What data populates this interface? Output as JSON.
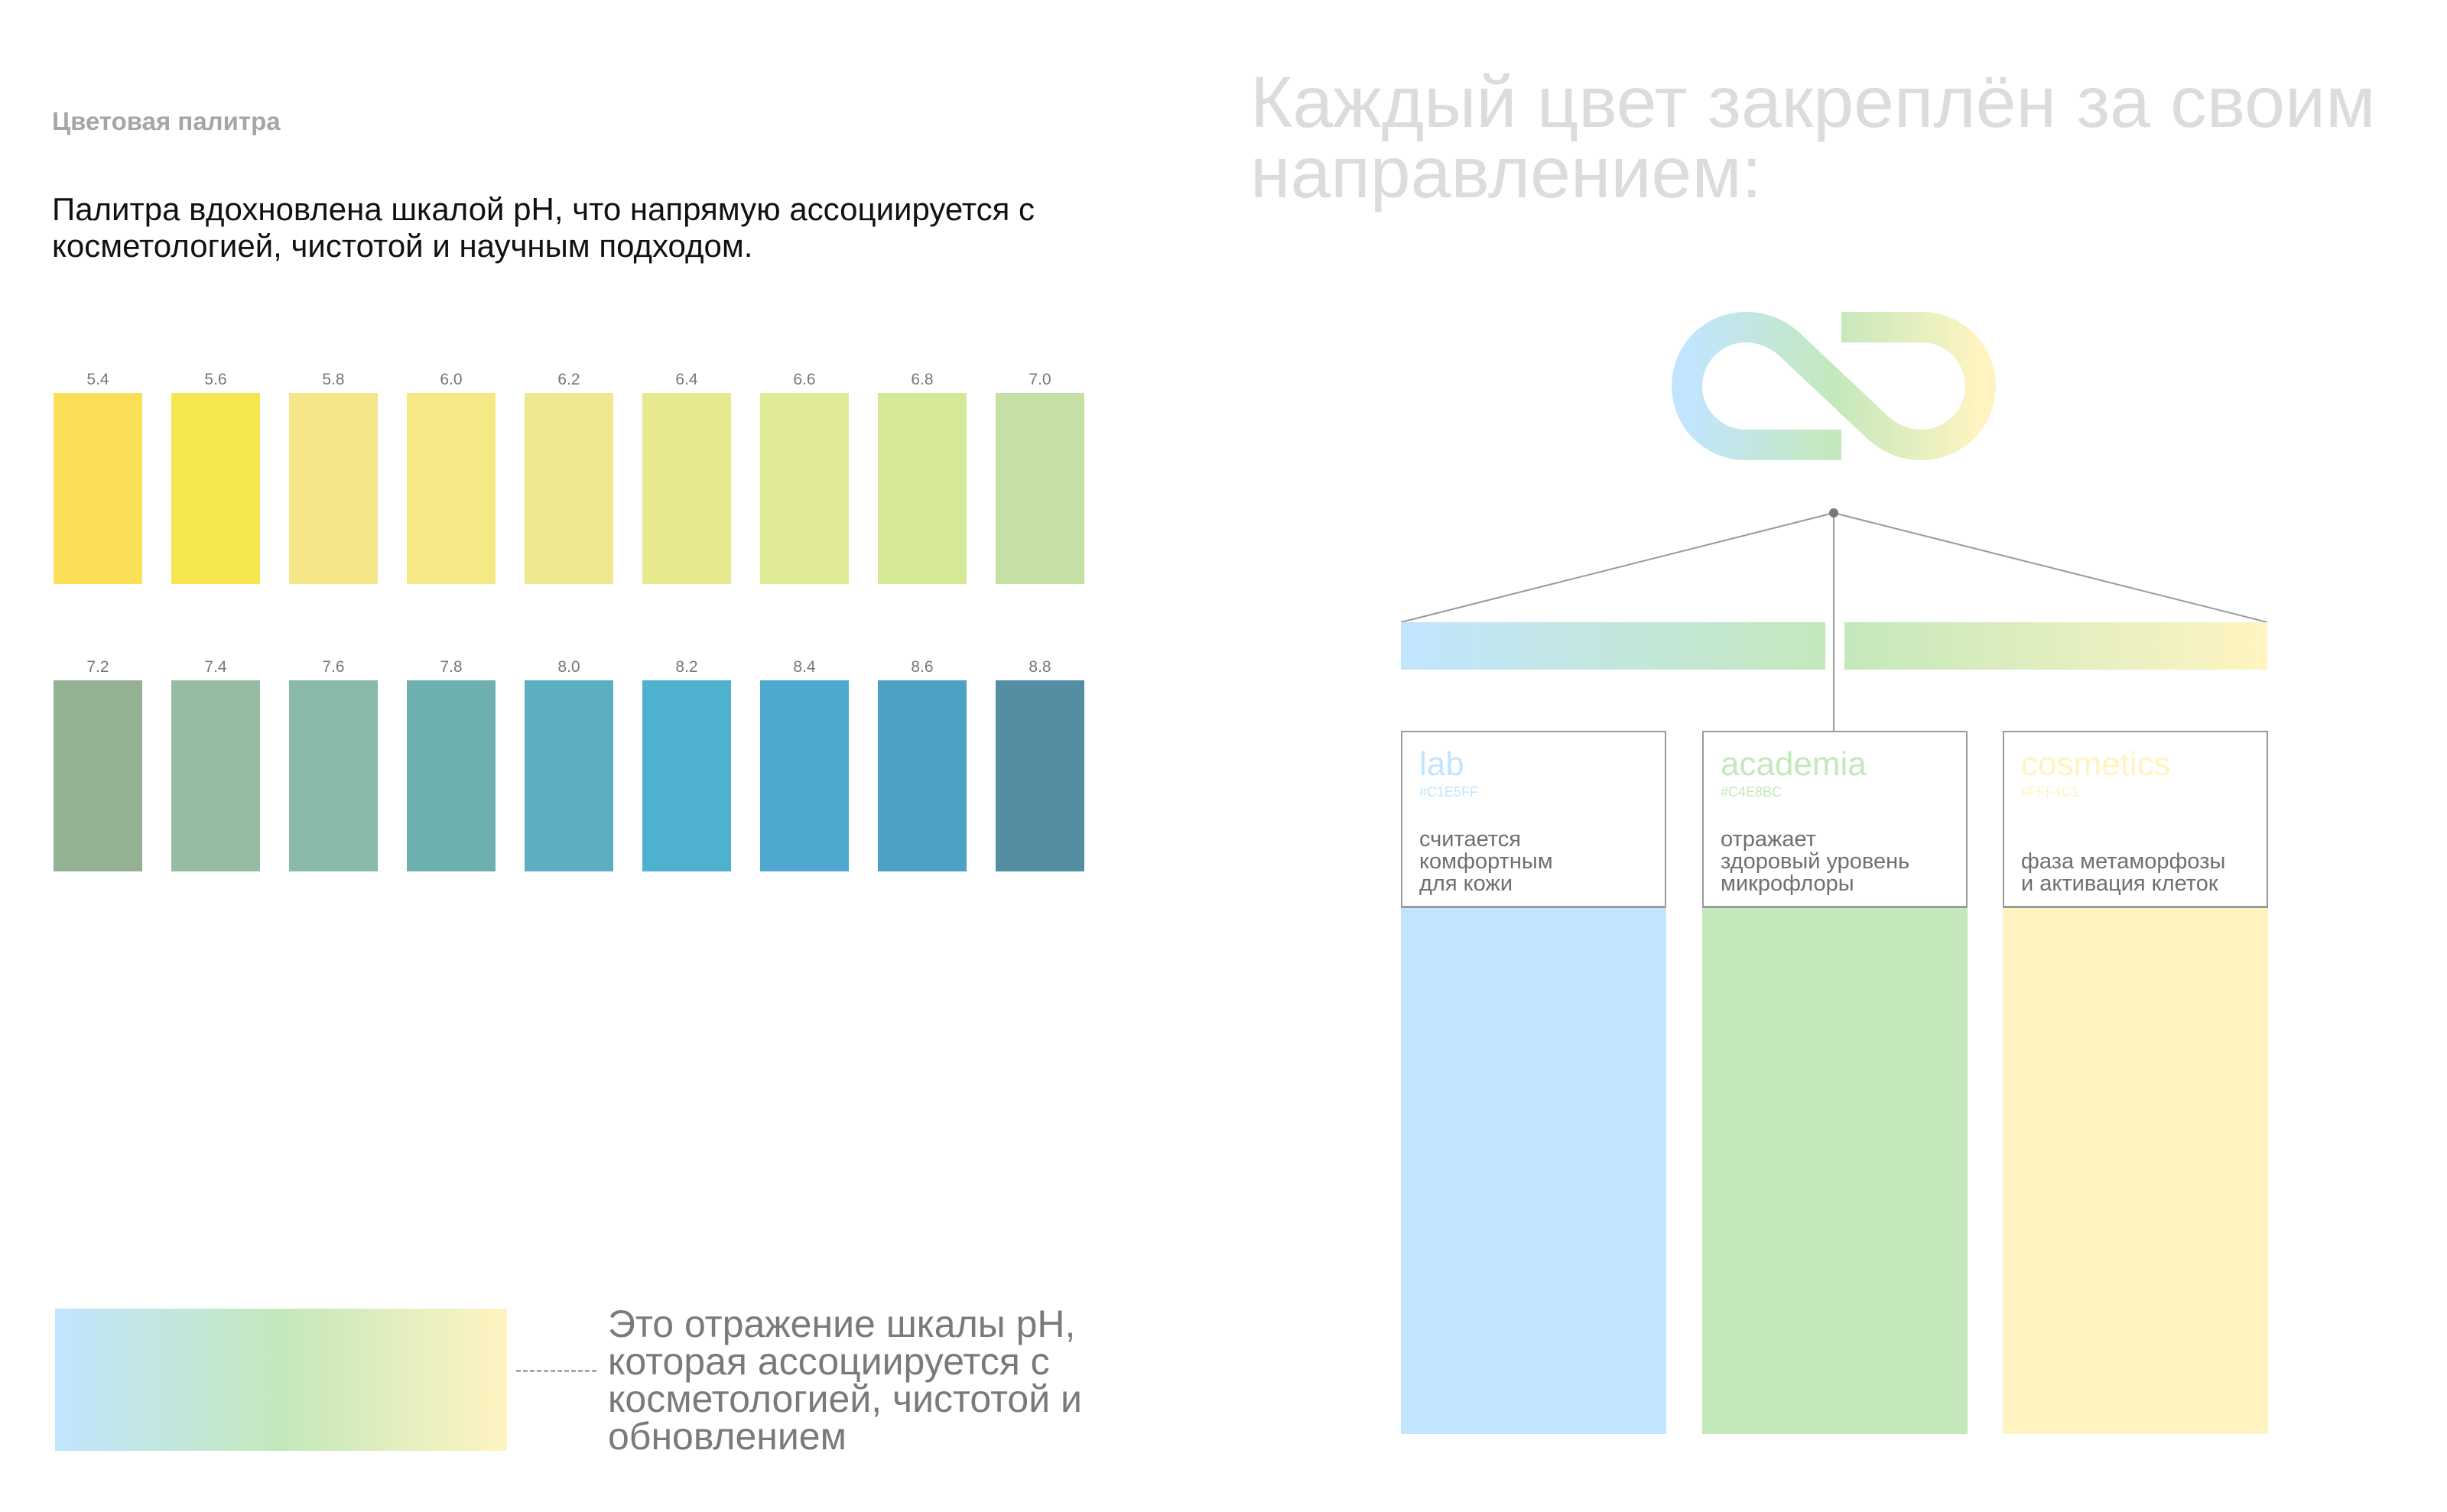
{
  "left": {
    "section_label": "Цветовая палитра",
    "intro": "Палитра вдохновлена шкалой pH, что напрямую ассоциируется с косметологией, чистотой и научным подходом.",
    "swatches_row1": [
      {
        "ph": "5.4",
        "color": "#FBDF57"
      },
      {
        "ph": "5.6",
        "color": "#F6E650"
      },
      {
        "ph": "5.8",
        "color": "#F4E689"
      },
      {
        "ph": "6.0",
        "color": "#F4E985"
      },
      {
        "ph": "6.2",
        "color": "#EEE890"
      },
      {
        "ph": "6.4",
        "color": "#E8E98F"
      },
      {
        "ph": "6.6",
        "color": "#E0EA94"
      },
      {
        "ph": "6.8",
        "color": "#D5E896"
      },
      {
        "ph": "7.0",
        "color": "#C5E0A4"
      }
    ],
    "swatches_row2": [
      {
        "ph": "7.2",
        "color": "#94B293"
      },
      {
        "ph": "7.4",
        "color": "#96BDA1"
      },
      {
        "ph": "7.6",
        "color": "#88B9AB"
      },
      {
        "ph": "7.8",
        "color": "#6EB0B0"
      },
      {
        "ph": "8.0",
        "color": "#5BAFC0"
      },
      {
        "ph": "8.2",
        "color": "#4EB2CF"
      },
      {
        "ph": "8.4",
        "color": "#4EA8CF"
      },
      {
        "ph": "8.6",
        "color": "#4DA1C4"
      },
      {
        "ph": "8.8",
        "color": "#558EA3"
      }
    ],
    "gradient_text": "Это отражение шкалы pH, которая ассоциируется с косметологией, чистотой и обновлением"
  },
  "right": {
    "heading": "Каждый цвет закреплён за своим направлением:",
    "cards": [
      {
        "title": "lab",
        "hex": "#C1E5FF",
        "color": "#C1E5FF",
        "desc": "считается\nкомфортным\nдля кожи"
      },
      {
        "title": "academia",
        "hex": "#C4E8BC",
        "color": "#C4E8BC",
        "desc": "отражает\nздоровый уровень\nмикрофлоры"
      },
      {
        "title": "cosmetics",
        "hex": "#FFF4C1",
        "color": "#FFF4C1",
        "desc": "фаза метаморфозы\nи активация клеток"
      }
    ]
  }
}
